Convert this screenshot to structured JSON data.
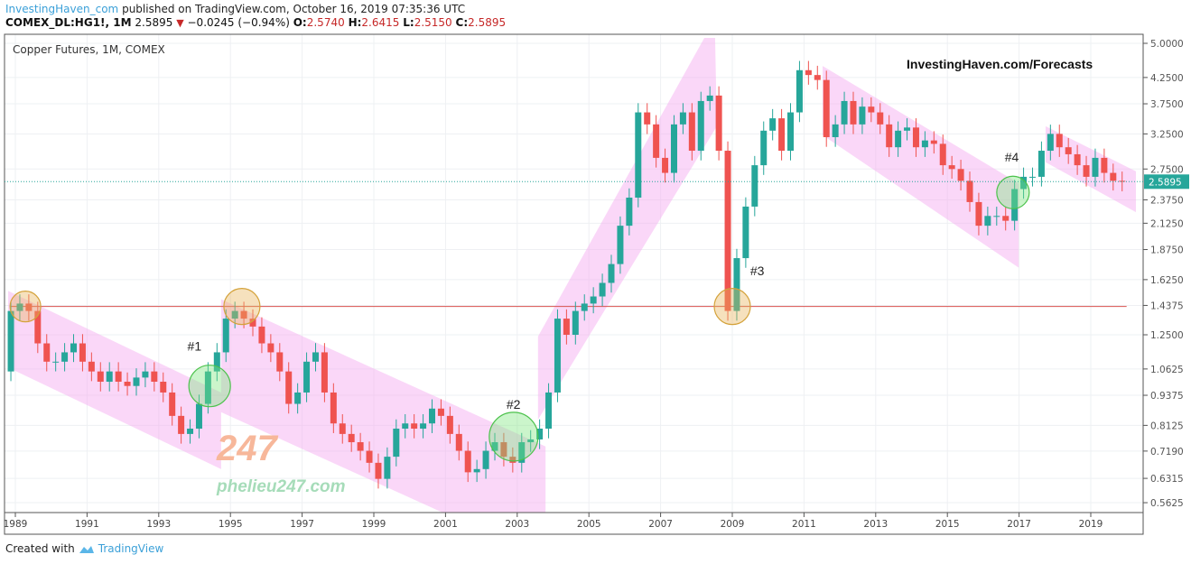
{
  "header": {
    "author": "InvestingHaven_com",
    "published": "published on TradingView.com, October 16, 2019 07:35:36 UTC",
    "symbol": "COMEX_DL:HG1!, 1M",
    "last": "2.5895",
    "change": "−0.0245 (−0.94%)",
    "o_label": "O:",
    "o": "2.5740",
    "h_label": "H:",
    "h": "2.6415",
    "l_label": "L:",
    "l": "2.5150",
    "c_label": "C:",
    "c": "2.5895"
  },
  "footer": {
    "created_with": "Created with",
    "brand": "TradingView"
  },
  "colors": {
    "up": "#26a69a",
    "down": "#ef5350",
    "channel": "#f3a6f0",
    "level": "#d9534f",
    "price_line": "#26a69a"
  },
  "chart_data": {
    "type": "candlestick",
    "title": "Copper Futures, 1M, COMEX",
    "watermark": "InvestingHaven.com/Forecasts",
    "logo_watermark": {
      "mark": "247",
      "site": "phelieu247.com"
    },
    "yscale": "log",
    "ylim": [
      0.54,
      5.15
    ],
    "xlim": [
      1988.75,
      2020.35
    ],
    "y_ticks": [
      "5.0000",
      "4.2500",
      "3.7500",
      "3.2500",
      "2.7500",
      "2.3750",
      "2.1250",
      "1.8750",
      "1.6250",
      "1.4375",
      "1.2500",
      "1.0625",
      "0.9375",
      "0.8125",
      "0.7190",
      "0.6315",
      "0.5625"
    ],
    "x_ticks": [
      "1989",
      "1991",
      "1993",
      "1995",
      "1997",
      "1999",
      "2001",
      "2003",
      "2005",
      "2007",
      "2009",
      "2011",
      "2013",
      "2015",
      "2017",
      "2019"
    ],
    "last_price": "2.5895",
    "start": 1988.75,
    "step": 0.25,
    "first_open": 1.05,
    "closes": [
      1.4,
      1.45,
      1.4,
      1.2,
      1.1,
      1.1,
      1.15,
      1.2,
      1.1,
      1.05,
      1.0,
      1.05,
      1.0,
      0.98,
      1.02,
      1.05,
      1.0,
      0.95,
      0.85,
      0.78,
      0.8,
      0.9,
      1.05,
      1.15,
      1.35,
      1.4,
      1.35,
      1.3,
      1.2,
      1.15,
      1.05,
      0.9,
      0.95,
      1.1,
      1.15,
      0.95,
      0.82,
      0.78,
      0.75,
      0.72,
      0.68,
      0.63,
      0.7,
      0.8,
      0.82,
      0.8,
      0.82,
      0.88,
      0.85,
      0.78,
      0.72,
      0.65,
      0.66,
      0.72,
      0.75,
      0.7,
      0.68,
      0.75,
      0.76,
      0.8,
      0.95,
      1.35,
      1.25,
      1.4,
      1.45,
      1.5,
      1.6,
      1.75,
      2.1,
      2.4,
      3.6,
      3.4,
      2.9,
      2.7,
      3.4,
      3.6,
      3.0,
      3.8,
      3.9,
      3.0,
      1.4,
      1.8,
      2.3,
      2.8,
      3.3,
      3.5,
      3.0,
      3.6,
      4.4,
      4.3,
      4.2,
      3.2,
      3.4,
      3.8,
      3.4,
      3.7,
      3.6,
      3.4,
      3.05,
      3.3,
      3.35,
      3.05,
      3.15,
      3.1,
      2.8,
      2.75,
      2.6,
      2.35,
      2.1,
      2.2,
      2.2,
      2.15,
      2.5,
      2.65,
      2.65,
      3.0,
      3.25,
      3.05,
      2.95,
      2.8,
      2.65,
      2.9,
      2.7,
      2.6,
      2.5895
    ],
    "annotations": {
      "level_line": {
        "price": 1.43,
        "from": 1988.87,
        "to": 2020.0
      },
      "channels": [
        [
          [
            1988.8,
            1.54
          ],
          [
            1994.74,
            0.95
          ],
          [
            1994.74,
            0.66
          ],
          [
            1988.8,
            1.07
          ]
        ],
        [
          [
            1994.74,
            1.48
          ],
          [
            2003.79,
            0.735
          ],
          [
            2003.79,
            0.43
          ],
          [
            1994.74,
            0.865
          ]
        ],
        [
          [
            2003.58,
            1.24
          ],
          [
            2008.22,
            5.13
          ],
          [
            2008.52,
            5.13
          ],
          [
            2008.57,
            3.37
          ],
          [
            2003.58,
            0.835
          ]
        ],
        [
          [
            2011.52,
            4.49
          ],
          [
            2016.99,
            2.57
          ],
          [
            2016.99,
            1.72
          ],
          [
            2011.52,
            3.23
          ]
        ],
        [
          [
            2017.74,
            3.37
          ],
          [
            2020.26,
            2.72
          ],
          [
            2020.26,
            2.24
          ],
          [
            2017.74,
            2.84
          ]
        ]
      ],
      "circles": [
        {
          "t": 1989.28,
          "p": 1.43,
          "kind": "resistance"
        },
        {
          "t": 1995.32,
          "p": 1.43,
          "kind": "resistance"
        },
        {
          "t": 1994.42,
          "p": 0.98,
          "kind": "breakout"
        },
        {
          "t": 2002.9,
          "p": 0.77,
          "kind": "breakout"
        },
        {
          "t": 2009.0,
          "p": 1.43,
          "kind": "resistance"
        },
        {
          "t": 2016.83,
          "p": 2.46,
          "kind": "breakout"
        }
      ],
      "labels": [
        {
          "text": "#1",
          "t": 1993.8,
          "p": 1.16
        },
        {
          "text": "#2",
          "t": 2002.7,
          "p": 0.88
        },
        {
          "text": "#3",
          "t": 2009.5,
          "p": 1.66
        },
        {
          "text": "#4",
          "t": 2016.6,
          "p": 2.85
        }
      ]
    }
  }
}
